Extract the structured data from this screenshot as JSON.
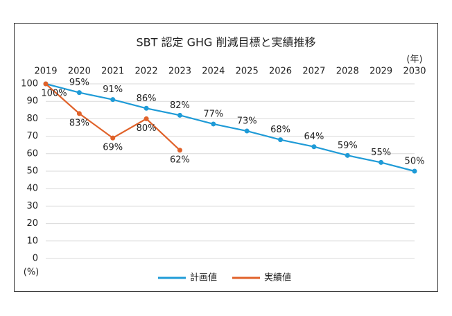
{
  "chart_data": {
    "type": "line",
    "title": "SBT 認定 GHG 削減目標と実績推移",
    "x_unit": "(年)",
    "y_unit": "(%)",
    "categories": [
      "2019",
      "2020",
      "2021",
      "2022",
      "2023",
      "2024",
      "2025",
      "2026",
      "2027",
      "2028",
      "2029",
      "2030"
    ],
    "series": [
      {
        "name": "計画値",
        "color": "#1f9bd7",
        "label_side": "above",
        "values": [
          100,
          95,
          91,
          86,
          82,
          77,
          73,
          68,
          64,
          59,
          55,
          50
        ],
        "value_labels": [
          null,
          "95%",
          "91%",
          "86%",
          "82%",
          "77%",
          "73%",
          "68%",
          "64%",
          "59%",
          "55%",
          "50%"
        ]
      },
      {
        "name": "実績値",
        "color": "#e0622a",
        "label_side": "below",
        "values": [
          100,
          83,
          69,
          80,
          62,
          null,
          null,
          null,
          null,
          null,
          null,
          null
        ],
        "value_labels": [
          "100%",
          "83%",
          "69%",
          "80%",
          "62%",
          null,
          null,
          null,
          null,
          null,
          null,
          null
        ]
      }
    ],
    "ylim": [
      0,
      100
    ],
    "yticks": [
      0,
      10,
      20,
      30,
      40,
      50,
      60,
      70,
      80,
      90,
      100
    ],
    "grid": true,
    "legend": "bottom"
  }
}
